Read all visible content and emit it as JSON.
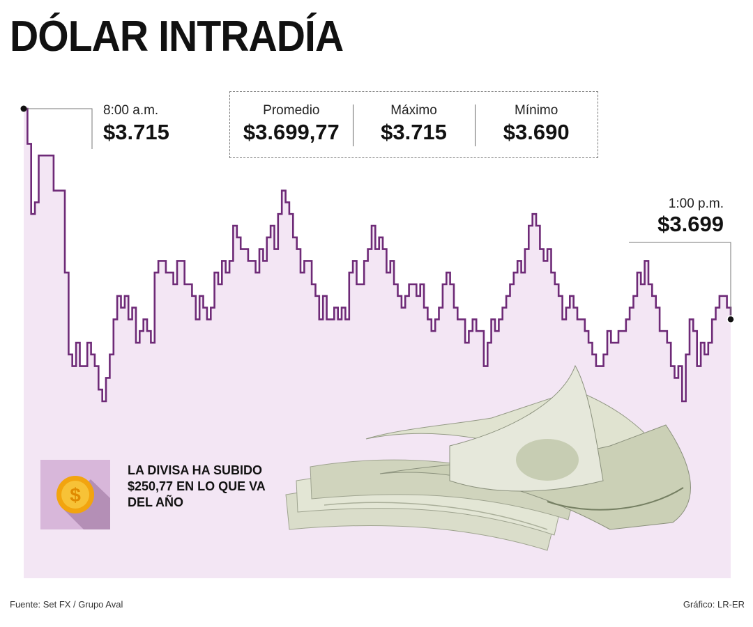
{
  "chart_data": {
    "type": "line",
    "title": "DÓLAR INTRADÍA",
    "series": [
      {
        "values": [
          3715,
          3712,
          3706,
          3707,
          3711,
          3711,
          3711,
          3711,
          3708,
          3708,
          3708,
          3701,
          3694,
          3693,
          3695,
          3693,
          3693,
          3695,
          3694,
          3693,
          3691,
          3690,
          3692,
          3694,
          3697,
          3699,
          3698,
          3699,
          3697,
          3698,
          3695,
          3696,
          3697,
          3696,
          3695,
          3701,
          3702,
          3702,
          3701,
          3701,
          3700,
          3702,
          3702,
          3700,
          3700,
          3699,
          3697,
          3699,
          3698,
          3697,
          3698,
          3701,
          3700,
          3702,
          3701,
          3702,
          3705,
          3704,
          3703,
          3703,
          3702,
          3702,
          3701,
          3703,
          3702,
          3704,
          3705,
          3703,
          3706,
          3708,
          3707,
          3706,
          3704,
          3703,
          3701,
          3702,
          3702,
          3700,
          3699,
          3697,
          3699,
          3697,
          3697,
          3698,
          3697,
          3698,
          3697,
          3701,
          3702,
          3700,
          3700,
          3702,
          3703,
          3705,
          3703,
          3704,
          3703,
          3701,
          3702,
          3700,
          3699,
          3698,
          3699,
          3700,
          3700,
          3699,
          3700,
          3698,
          3697,
          3696,
          3697,
          3698,
          3700,
          3701,
          3700,
          3698,
          3697,
          3697,
          3695,
          3696,
          3697,
          3696,
          3696,
          3693,
          3695,
          3697,
          3696,
          3697,
          3698,
          3699,
          3700,
          3701,
          3702,
          3701,
          3703,
          3705,
          3706,
          3705,
          3703,
          3702,
          3703,
          3701,
          3700,
          3699,
          3697,
          3698,
          3699,
          3698,
          3697,
          3697,
          3696,
          3695,
          3694,
          3693,
          3693,
          3694,
          3696,
          3695,
          3695,
          3696,
          3696,
          3697,
          3698,
          3699,
          3701,
          3700,
          3702,
          3700,
          3699,
          3698,
          3696,
          3696,
          3695,
          3693,
          3692,
          3693,
          3690,
          3694,
          3697,
          3696,
          3693,
          3695,
          3694,
          3695,
          3697,
          3698,
          3699,
          3699,
          3698,
          3697
        ]
      }
    ],
    "xlabel": "",
    "ylabel": "",
    "ylim": [
      3689,
      3716
    ],
    "grid": false,
    "annotations": [
      {
        "time": "8:00 a.m.",
        "value": "$3.715"
      },
      {
        "time": "1:00 p.m.",
        "value": "$3.699"
      }
    ]
  },
  "stats": {
    "promedio": {
      "label": "Promedio",
      "value": "$3.699,77"
    },
    "maximo": {
      "label": "Máximo",
      "value": "$3.715"
    },
    "minimo": {
      "label": "Mínimo",
      "value": "$3.690"
    }
  },
  "note": "LA DIVISA HA SUBIDO $250,77 EN LO QUE VA DEL AÑO",
  "footer": {
    "source": "Fuente: Set FX / Grupo Aval",
    "credit": "Gráfico: LR-ER"
  },
  "colors": {
    "line": "#6e2a77",
    "area": "#f3e6f4",
    "icon_bg": "#d8b7da",
    "coin": "#f2a40f"
  },
  "icon": "dollar-coin-icon"
}
